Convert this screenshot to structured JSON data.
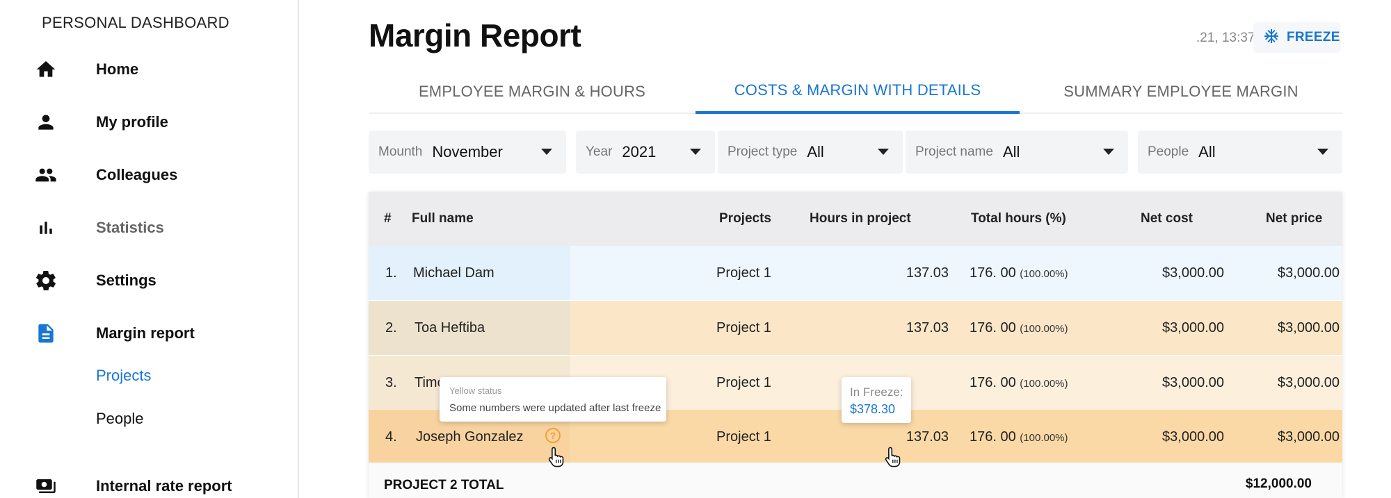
{
  "sidebar": {
    "title": "PERSONAL DASHBOARD",
    "items": [
      {
        "label": "Home",
        "icon": "home-icon"
      },
      {
        "label": "My profile",
        "icon": "person-icon"
      },
      {
        "label": "Colleagues",
        "icon": "people-icon"
      },
      {
        "label": "Statistics",
        "icon": "bar-chart-icon"
      },
      {
        "label": "Settings",
        "icon": "gear-icon"
      },
      {
        "label": "Margin report",
        "icon": "document-icon"
      },
      {
        "label": "Internal rate report",
        "icon": "cash-icon"
      }
    ],
    "subitems": [
      {
        "label": "Projects",
        "active": true
      },
      {
        "label": "People",
        "active": false
      }
    ]
  },
  "header": {
    "title": "Margin Report",
    "timestamp": ".21, 13:37",
    "freeze_label": "FREEZE"
  },
  "tabs": [
    {
      "label": "EMPLOYEE MARGIN & HOURS",
      "active": false
    },
    {
      "label": "COSTS & MARGIN WITH DETAILS",
      "active": true
    },
    {
      "label": "SUMMARY EMPLOYEE MARGIN",
      "active": false
    }
  ],
  "filters": [
    {
      "key": "Mounth",
      "value": "November"
    },
    {
      "key": "Year",
      "value": "2021"
    },
    {
      "key": "Project type",
      "value": "All"
    },
    {
      "key": "Project name",
      "value": "All"
    },
    {
      "key": "People",
      "value": "All"
    }
  ],
  "table": {
    "headers": [
      "#",
      "Full name",
      "Projects",
      "Hours in project",
      "Total  hours (%)",
      "Net cost",
      "Net price"
    ],
    "rows": [
      {
        "num": "1.",
        "name": "Michael Dam",
        "project": "Project 1",
        "hours": "137.03",
        "total": "176. 00",
        "pct": "(100.00%)",
        "net_cost": "$3,000.00",
        "net_price": "$3,000.00"
      },
      {
        "num": "2.",
        "name": "Toa Heftiba",
        "project": "Project 1",
        "hours": "137.03",
        "total": "176. 00",
        "pct": "(100.00%)",
        "net_cost": "$3,000.00",
        "net_price": "$3,000.00"
      },
      {
        "num": "3.",
        "name": "Timo",
        "project": "Project 1",
        "hours": "",
        "total": "176. 00",
        "pct": "(100.00%)",
        "net_cost": "$3,000.00",
        "net_price": "$3,000.00"
      },
      {
        "num": "4.",
        "name": "Joseph Gonzalez",
        "project": "Project 1",
        "hours": "137.03",
        "total": "176. 00",
        "pct": "(100.00%)",
        "net_cost": "$3,000.00",
        "net_price": "$3,000.00"
      }
    ],
    "total_label": "PROJECT 2 TOTAL",
    "total_value": "$12,000.00"
  },
  "tooltips": {
    "status": {
      "title": "Yellow status",
      "text": "Some numbers were updated after last freeze"
    },
    "freeze": {
      "title": "In Freeze:",
      "value": "$378.30"
    }
  },
  "colors": {
    "accent": "#1976d2",
    "row1": "#eef7fd",
    "row1_name": "#e2f1fb",
    "row2": "#fbe6c8",
    "row2_name": "#ede2cd",
    "row3": "#fcefdc",
    "row3_name": "#f5e8d3",
    "row4": "#fbd9a6",
    "row4_name": "#f8d3a0",
    "status_yellow": "#f0a030"
  }
}
